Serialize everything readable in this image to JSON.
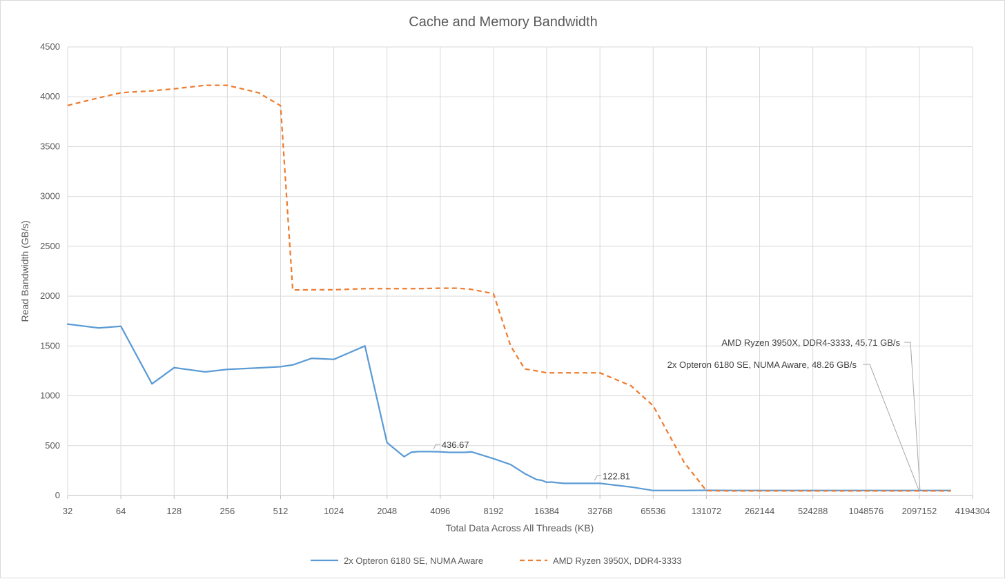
{
  "chart_data": {
    "type": "line",
    "title": "Cache and Memory Bandwidth",
    "xlabel": "Total Data Across All Threads (KB)",
    "ylabel": "Read Bandwidth (GB/s)",
    "x_scale": "log2",
    "xlim": [
      32,
      4194304
    ],
    "ylim": [
      0,
      4500
    ],
    "x_ticks": [
      "32",
      "64",
      "128",
      "256",
      "512",
      "1024",
      "2048",
      "4096",
      "8192",
      "16384",
      "32768",
      "65536",
      "131072",
      "262144",
      "524288",
      "1048576",
      "2097152",
      "4194304"
    ],
    "y_ticks": [
      "0",
      "500",
      "1000",
      "1500",
      "2000",
      "2500",
      "3000",
      "3500",
      "4000",
      "4500"
    ],
    "grid": true,
    "legend_position": "bottom",
    "series": [
      {
        "name": "2x Opteron 6180 SE, NUMA Aware",
        "color": "#5b9bd5",
        "dash": "solid",
        "x": [
          32,
          48,
          64,
          96,
          128,
          192,
          256,
          384,
          512,
          600,
          768,
          1024,
          1536,
          2048,
          2560,
          2816,
          3072,
          3584,
          4096,
          4608,
          5120,
          5632,
          6144,
          8192,
          10240,
          12288,
          14336,
          15360,
          16384,
          17408,
          18432,
          20480,
          24576,
          28672,
          32768,
          49152,
          65536,
          98304,
          131072,
          196608,
          262144,
          393216,
          524288,
          786432,
          1048576,
          1572864,
          2097152,
          3145728
        ],
        "values": [
          1720,
          1680,
          1698,
          1120,
          1282,
          1240,
          1265,
          1280,
          1292,
          1310,
          1376,
          1365,
          1500,
          530,
          390,
          435,
          440,
          440,
          438,
          433,
          433,
          433,
          438,
          370,
          310,
          220,
          160,
          152,
          132,
          135,
          130,
          122,
          122,
          122,
          122,
          85,
          50,
          50,
          52,
          50,
          50,
          50,
          50,
          50,
          50,
          50,
          50,
          50
        ]
      },
      {
        "name": "AMD Ryzen 3950X, DDR4-3333",
        "color": "#ed7d31",
        "dash": "dashed",
        "x": [
          32,
          48,
          64,
          96,
          128,
          192,
          256,
          384,
          512,
          600,
          768,
          1024,
          1536,
          2048,
          3072,
          4096,
          5120,
          6144,
          8192,
          10240,
          12288,
          14336,
          16384,
          20480,
          24576,
          28672,
          32768,
          49152,
          65536,
          98304,
          131072,
          196608,
          262144,
          393216,
          524288,
          786432,
          1048576,
          1572864,
          2097152,
          3145728
        ],
        "values": [
          3912,
          3990,
          4040,
          4060,
          4080,
          4115,
          4115,
          4040,
          3910,
          2062,
          2064,
          2064,
          2075,
          2075,
          2075,
          2080,
          2080,
          2068,
          2025,
          1500,
          1270,
          1250,
          1230,
          1230,
          1230,
          1230,
          1230,
          1100,
          900,
          330,
          48,
          46,
          46,
          46,
          46,
          46,
          46,
          46,
          46,
          46
        ]
      }
    ],
    "annotations": [
      {
        "text": "436.67",
        "x": 3072,
        "y": 436.67
      },
      {
        "text": "122.81",
        "x": 24576,
        "y": 122.81
      },
      {
        "text": "AMD Ryzen 3950X, DDR4-3333, 45.71 GB/s",
        "x": 2097152,
        "y": 45.71
      },
      {
        "text": "2x Opteron 6180 SE, NUMA Aware, 48.26 GB/s",
        "x": 2097152,
        "y": 48.26
      }
    ]
  }
}
